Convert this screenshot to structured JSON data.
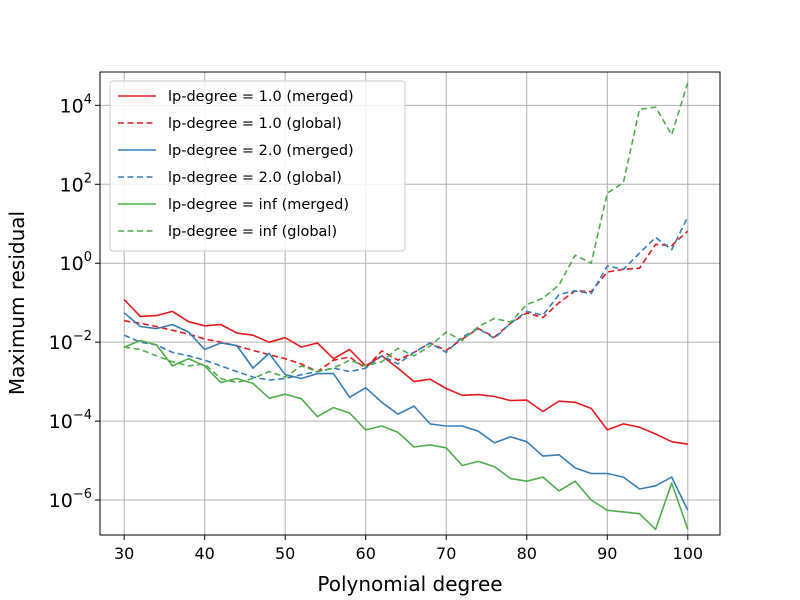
{
  "chart_data": {
    "type": "line",
    "xlabel": "Polynomial degree",
    "ylabel": "Maximum residual",
    "xlim": [
      27,
      104
    ],
    "ylim": [
      1.3e-07,
      70000.0
    ],
    "yscale": "log",
    "grid": true,
    "legend_position": "top-left",
    "x_ticks": [
      30,
      40,
      50,
      60,
      70,
      80,
      90,
      100
    ],
    "y_ticks": [
      {
        "value": 1e-06,
        "mantissa": "10",
        "exp": "−6"
      },
      {
        "value": 0.0001,
        "mantissa": "10",
        "exp": "−4"
      },
      {
        "value": 0.01,
        "mantissa": "10",
        "exp": "−2"
      },
      {
        "value": 1,
        "mantissa": "10",
        "exp": "0"
      },
      {
        "value": 100,
        "mantissa": "10",
        "exp": "2"
      },
      {
        "value": 10000,
        "mantissa": "10",
        "exp": "4"
      }
    ],
    "x": [
      30,
      32,
      34,
      36,
      38,
      40,
      42,
      44,
      46,
      48,
      50,
      52,
      54,
      56,
      58,
      60,
      62,
      64,
      66,
      68,
      70,
      72,
      74,
      76,
      78,
      80,
      82,
      84,
      86,
      88,
      90,
      92,
      94,
      96,
      98,
      100
    ],
    "series": [
      {
        "name": "lp-degree = 1.0 (merged)",
        "color": "#e41a1c",
        "dash": "solid",
        "values": [
          0.12,
          0.045,
          0.047,
          0.06,
          0.033,
          0.026,
          0.028,
          0.017,
          0.015,
          0.01,
          0.013,
          0.0075,
          0.0095,
          0.0038,
          0.0065,
          0.0025,
          0.0045,
          0.0022,
          0.001,
          0.00115,
          0.00067,
          0.00045,
          0.00047,
          0.00042,
          0.00033,
          0.00034,
          0.000175,
          0.00032,
          0.0003,
          0.00021,
          6e-05,
          8.5e-05,
          7e-05,
          4.7e-05,
          3e-05,
          2.6e-05
        ]
      },
      {
        "name": "lp-degree = 1.0 (global)",
        "color": "#e41a1c",
        "dash": "dashed",
        "values": [
          0.035,
          0.03,
          0.025,
          0.02,
          0.016,
          0.012,
          0.01,
          0.008,
          0.0062,
          0.0048,
          0.0038,
          0.0028,
          0.0018,
          0.0035,
          0.0042,
          0.0022,
          0.006,
          0.0035,
          0.0055,
          0.0095,
          0.0062,
          0.012,
          0.022,
          0.0135,
          0.03,
          0.055,
          0.042,
          0.1,
          0.2,
          0.19,
          0.6,
          0.7,
          0.75,
          3.0,
          2.8,
          6.5
        ]
      },
      {
        "name": "lp-degree = 2.0 (merged)",
        "color": "#377eb8",
        "dash": "solid",
        "values": [
          0.055,
          0.025,
          0.022,
          0.028,
          0.018,
          0.0065,
          0.0095,
          0.0082,
          0.0022,
          0.0052,
          0.0015,
          0.0012,
          0.0016,
          0.0016,
          0.0004,
          0.0007,
          0.0003,
          0.00015,
          0.00024,
          8.5e-05,
          7.5e-05,
          7.5e-05,
          5.5e-05,
          2.8e-05,
          4e-05,
          3e-05,
          1.3e-05,
          1.4e-05,
          6.5e-06,
          4.7e-06,
          4.7e-06,
          3.8e-06,
          1.9e-06,
          2.3e-06,
          3.8e-06,
          5.5e-07
        ]
      },
      {
        "name": "lp-degree = 2.0 (global)",
        "color": "#377eb8",
        "dash": "dashed",
        "values": [
          0.015,
          0.01,
          0.0085,
          0.0055,
          0.0045,
          0.0035,
          0.0025,
          0.0018,
          0.0013,
          0.0011,
          0.0012,
          0.0015,
          0.0018,
          0.0022,
          0.0018,
          0.0022,
          0.0045,
          0.0028,
          0.0055,
          0.0095,
          0.0055,
          0.0135,
          0.022,
          0.0125,
          0.03,
          0.06,
          0.048,
          0.16,
          0.2,
          0.17,
          0.85,
          0.7,
          1.8,
          4.5,
          2.2,
          15
        ]
      },
      {
        "name": "lp-degree = inf (merged)",
        "color": "#4daf4a",
        "dash": "solid",
        "values": [
          0.0075,
          0.011,
          0.0085,
          0.0025,
          0.0038,
          0.0025,
          0.00095,
          0.0012,
          0.0009,
          0.00038,
          0.00048,
          0.00037,
          0.00013,
          0.00022,
          0.00016,
          6e-05,
          7.5e-05,
          5.2e-05,
          2.2e-05,
          2.5e-05,
          2.1e-05,
          7.5e-06,
          9.5e-06,
          7e-06,
          3.5e-06,
          3e-06,
          3.8e-06,
          1.7e-06,
          3e-06,
          1e-06,
          5.5e-07,
          5e-07,
          4.5e-07,
          1.8e-07,
          2.7e-06,
          1.8e-07
        ]
      },
      {
        "name": "lp-degree = inf (global)",
        "color": "#4daf4a",
        "dash": "dashed",
        "values": [
          0.0075,
          0.0065,
          0.0045,
          0.0032,
          0.0025,
          0.0028,
          0.0012,
          0.00095,
          0.0012,
          0.0018,
          0.0013,
          0.0025,
          0.0018,
          0.0022,
          0.0035,
          0.0025,
          0.0032,
          0.007,
          0.0045,
          0.008,
          0.018,
          0.011,
          0.025,
          0.04,
          0.032,
          0.09,
          0.13,
          0.28,
          1.6,
          1.0,
          60,
          110,
          8000,
          9000,
          1800,
          38000
        ]
      }
    ]
  }
}
